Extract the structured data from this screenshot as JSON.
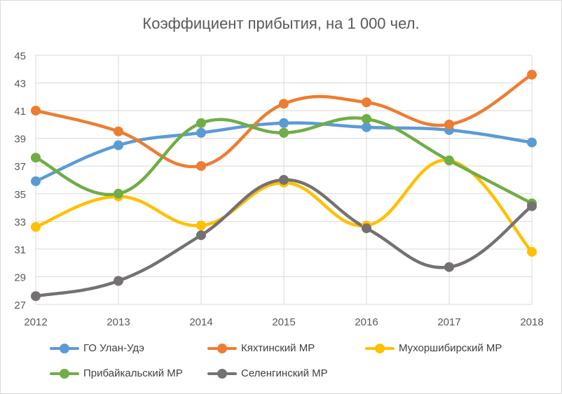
{
  "chart_data": {
    "type": "line",
    "title": "Коэффициент прибытия, на 1 000 чел.",
    "categories": [
      "2012",
      "2013",
      "2014",
      "2015",
      "2016",
      "2017",
      "2018"
    ],
    "ylim": [
      27,
      45
    ],
    "yticks": [
      27,
      29,
      31,
      33,
      35,
      37,
      39,
      41,
      43,
      45
    ],
    "grid": true,
    "legend_position": "bottom",
    "smooth": true,
    "series": [
      {
        "name": "ГО Улан-Удэ",
        "color": "#5b9bd5",
        "values": [
          35.9,
          38.5,
          39.4,
          40.1,
          39.8,
          39.6,
          38.7
        ]
      },
      {
        "name": "Кяхтинский МР",
        "color": "#ed7d31",
        "values": [
          41.0,
          39.5,
          37.0,
          41.5,
          41.6,
          40.0,
          43.6
        ]
      },
      {
        "name": "Мухоршибирский МР",
        "color": "#ffc000",
        "values": [
          32.6,
          34.8,
          32.7,
          35.8,
          32.7,
          37.4,
          30.8
        ]
      },
      {
        "name": "Прибайкальский МР",
        "color": "#70ad47",
        "values": [
          37.6,
          35.0,
          40.1,
          39.4,
          40.4,
          37.4,
          34.3
        ]
      },
      {
        "name": "Селенгинский МР",
        "color": "#767171",
        "values": [
          27.6,
          28.7,
          32.0,
          36.0,
          32.5,
          29.7,
          34.1
        ]
      }
    ]
  }
}
